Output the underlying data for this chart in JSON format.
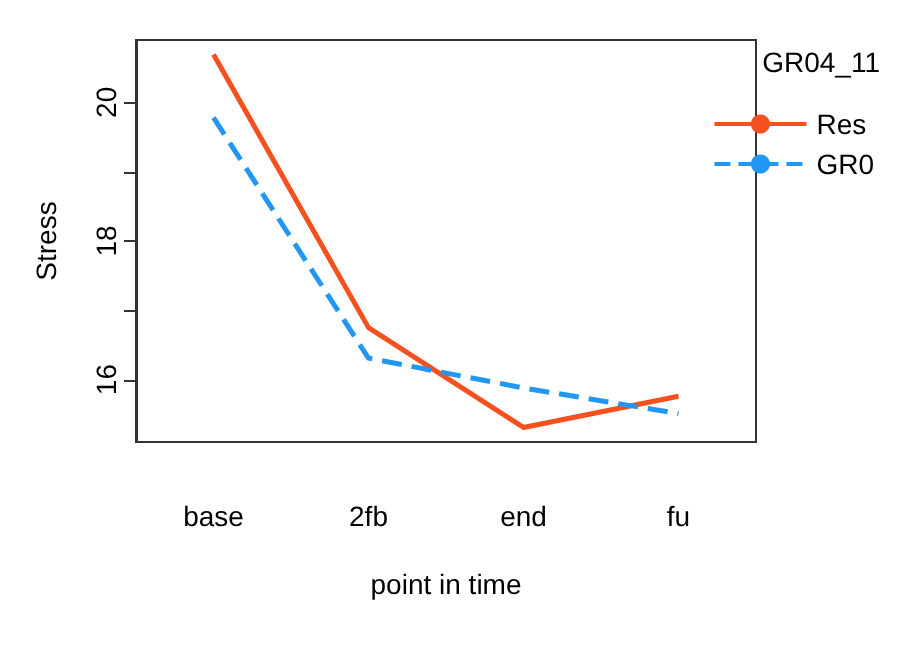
{
  "chart_data": {
    "type": "line",
    "xlabel": "point in time",
    "ylabel": "Stress",
    "legend_title": "GR04_11",
    "categories": [
      "base",
      "2fb",
      "end",
      "fu"
    ],
    "series": [
      {
        "name": "Res",
        "color": "#f4511e",
        "line_style": "solid",
        "values": [
          20.69,
          16.75,
          15.31,
          15.76
        ]
      },
      {
        "name": "GR0",
        "color": "#2196f3",
        "line_style": "dashed",
        "values": [
          19.78,
          16.31,
          15.88,
          15.51
        ]
      }
    ],
    "ylim": [
      15.1,
      20.9
    ],
    "yticks": [
      16,
      {
        "value": 17,
        "label": null
      },
      18,
      {
        "value": 19,
        "label": null
      },
      20
    ],
    "grid": false,
    "legend": "top right",
    "marker": "none"
  }
}
